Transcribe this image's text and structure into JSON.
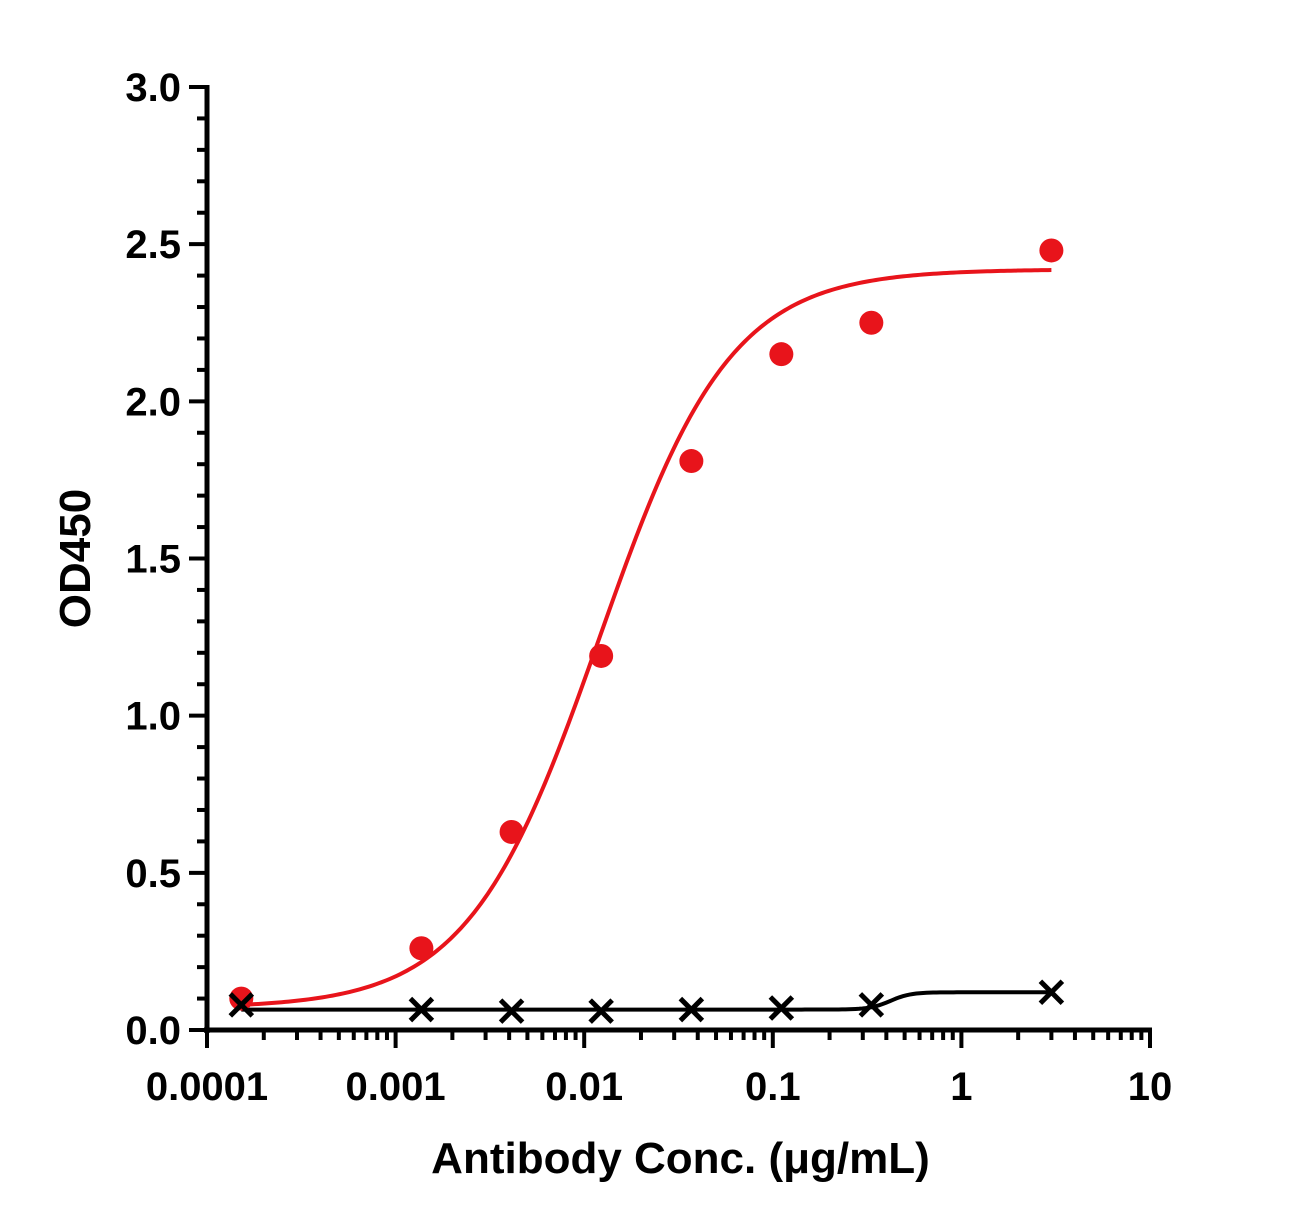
{
  "chart_data": {
    "type": "scatter",
    "title": "",
    "xlabel": "Antibody Conc. (μg/mL)",
    "ylabel": "OD450",
    "x_scale": "log",
    "xlim": [
      0.0001,
      10
    ],
    "ylim": [
      0,
      3.0
    ],
    "x_tick_labels": [
      "0.0001",
      "0.001",
      "0.01",
      "0.1",
      "1",
      "10"
    ],
    "x_tick_values": [
      0.0001,
      0.001,
      0.01,
      0.1,
      1,
      10
    ],
    "y_tick_labels": [
      "0.0",
      "0.5",
      "1.0",
      "1.5",
      "2.0",
      "2.5",
      "3.0"
    ],
    "y_tick_values": [
      0,
      0.5,
      1.0,
      1.5,
      2.0,
      2.5,
      3.0
    ],
    "grid": false,
    "legend": "none",
    "series": [
      {
        "marker": "circle",
        "color": "#e8141b",
        "x": [
          0.000152,
          0.00137,
          0.00412,
          0.0123,
          0.037,
          0.111,
          0.333,
          3.0
        ],
        "y": [
          0.1,
          0.26,
          0.63,
          1.19,
          1.81,
          2.15,
          2.25,
          2.48
        ],
        "fit": {
          "bottom": 0.07,
          "top": 2.42,
          "ec50": 0.012,
          "hill": 1.25
        }
      },
      {
        "marker": "x",
        "color": "#000000",
        "x": [
          0.000152,
          0.00137,
          0.00412,
          0.0123,
          0.037,
          0.111,
          0.333,
          3.0
        ],
        "y": [
          0.08,
          0.065,
          0.06,
          0.06,
          0.065,
          0.07,
          0.08,
          0.12
        ],
        "fit": {
          "bottom": 0.065,
          "top": 0.12,
          "ec50": 0.42,
          "hill": 8
        }
      }
    ]
  }
}
